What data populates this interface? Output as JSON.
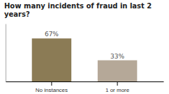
{
  "chart_data": {
    "type": "bar",
    "title": "How many incidents of fraud in last 2 years?",
    "categories": [
      "No instances",
      "1 or more"
    ],
    "values": [
      67,
      33
    ],
    "value_labels": [
      "67%",
      "33%"
    ],
    "colors": [
      "#8B7B55",
      "#B5A898"
    ],
    "ylim": [
      0,
      90
    ],
    "data_labels": true,
    "tick_labels": "x"
  }
}
